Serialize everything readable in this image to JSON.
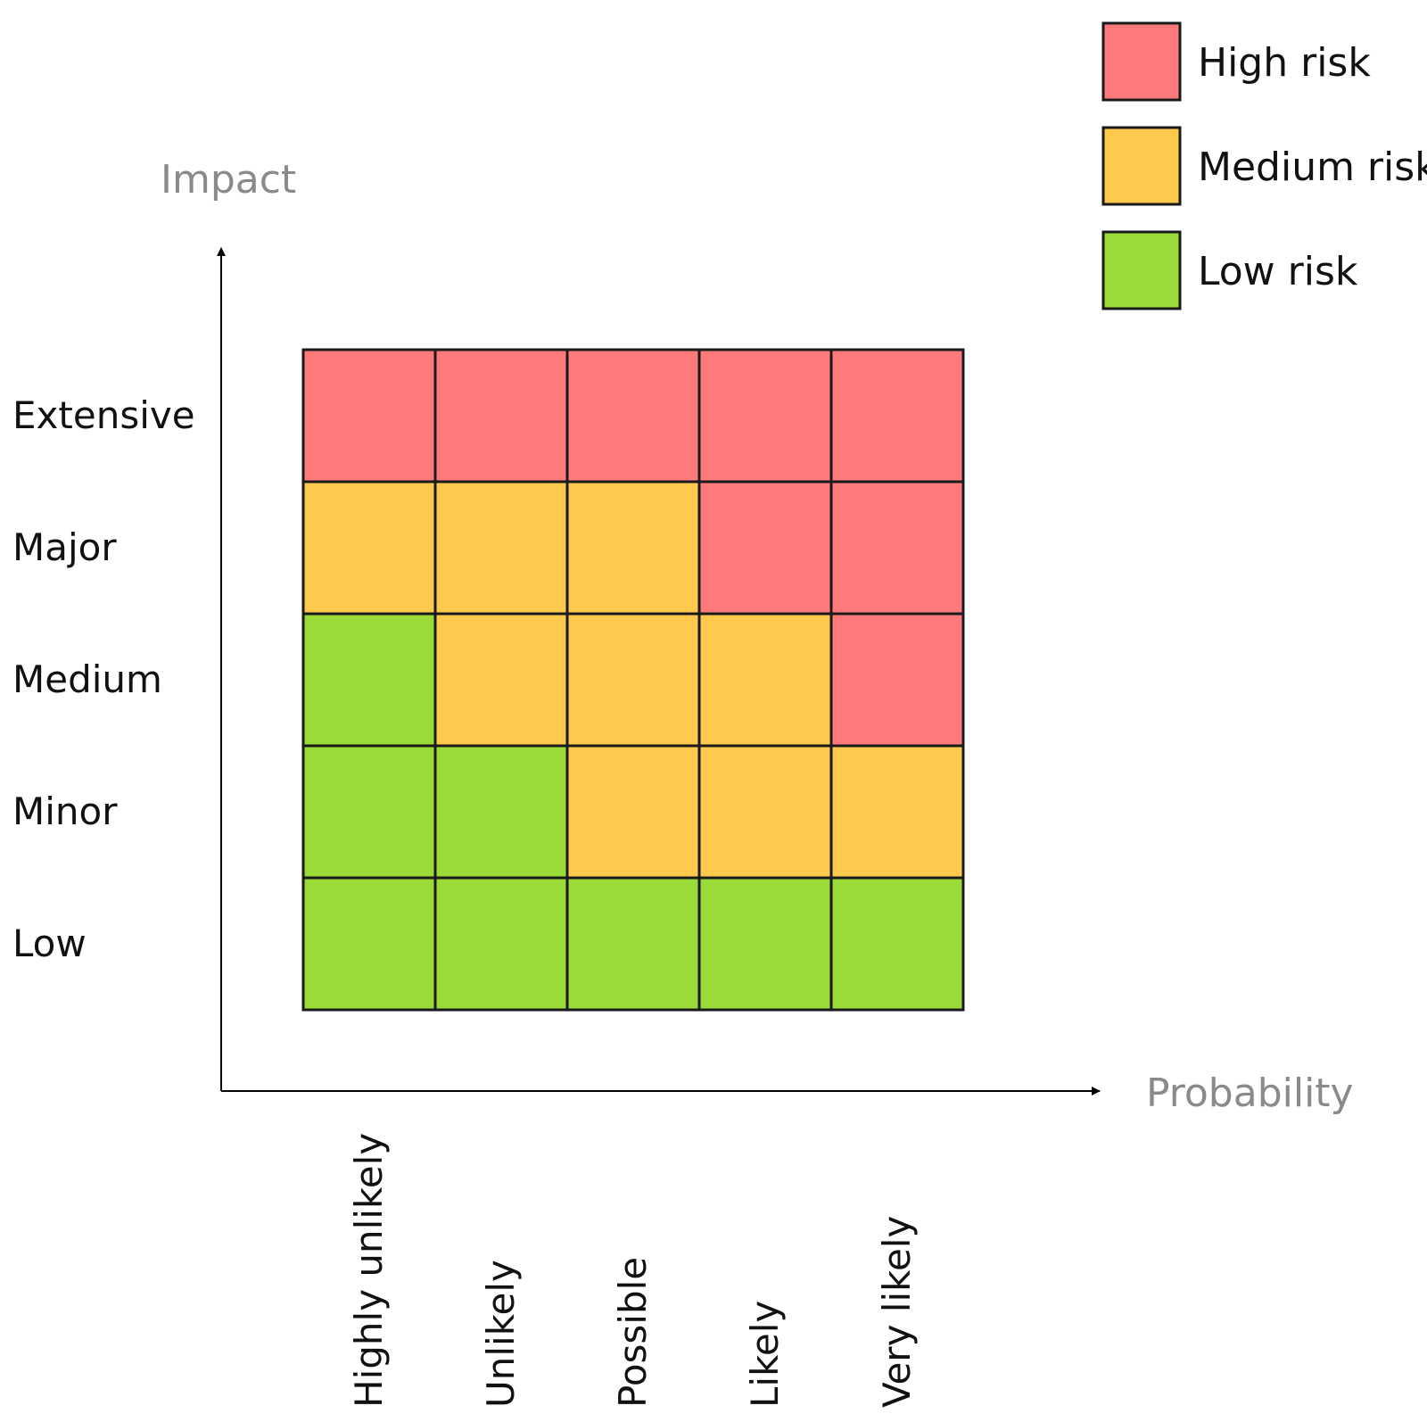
{
  "chart_data": {
    "type": "heatmap",
    "title": "",
    "xlabel": "Probability",
    "ylabel": "Impact",
    "x_categories": [
      "Highly unlikely",
      "Unlikely",
      "Possible",
      "Likely",
      "Very likely"
    ],
    "y_categories": [
      "Extensive",
      "Major",
      "Medium",
      "Minor",
      "Low"
    ],
    "cells": [
      [
        "high",
        "high",
        "high",
        "high",
        "high"
      ],
      [
        "medium",
        "medium",
        "medium",
        "high",
        "high"
      ],
      [
        "low",
        "medium",
        "medium",
        "medium",
        "high"
      ],
      [
        "low",
        "low",
        "medium",
        "medium",
        "medium"
      ],
      [
        "low",
        "low",
        "low",
        "low",
        "low"
      ]
    ],
    "legend": [
      {
        "key": "high",
        "label": "High risk",
        "color": "#ff7a7a"
      },
      {
        "key": "medium",
        "label": "Medium risk",
        "color": "#fec94d"
      },
      {
        "key": "low",
        "label": "Low risk",
        "color": "#9adb3a"
      }
    ],
    "legend_placement": "top-right",
    "grid": true
  }
}
